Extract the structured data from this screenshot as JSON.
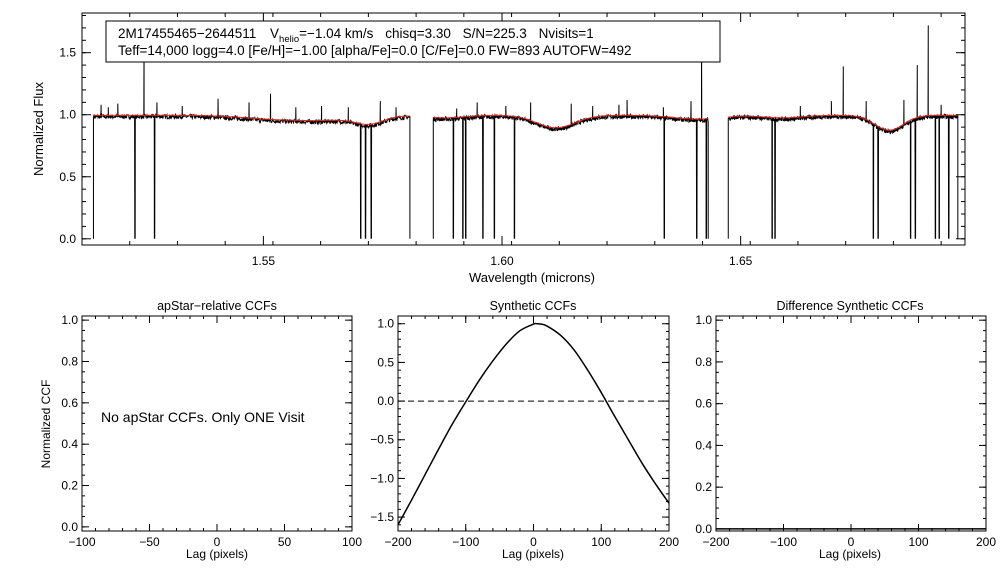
{
  "chart_data": [
    {
      "id": "spectrum",
      "type": "line",
      "title": "",
      "xlabel": "Wavelength (microns)",
      "ylabel": "Normalized Flux",
      "xlim": [
        1.512,
        1.697
      ],
      "ylim": [
        -0.05,
        1.82
      ],
      "xticks": [
        1.55,
        1.6,
        1.65
      ],
      "xtick_labels": [
        "1.55",
        "1.60",
        "1.65"
      ],
      "yticks": [
        0.0,
        0.5,
        1.0,
        1.5
      ],
      "ytick_labels": [
        "0.0",
        "0.5",
        "1.0",
        "1.5"
      ],
      "info_line1": {
        "star": "2M17455465−2644511",
        "vhelio_symbol": "V",
        "vhelio_sub": "helio",
        "vhelio_value": "=−1.04 km/s",
        "chisq": "chisq=3.30",
        "sn": "S/N=225.3",
        "nvisits": "Nvisits=1"
      },
      "info_line2": "Teff=14,000 logg=4.0 [Fe/H]=−1.00 [alpha/Fe]=0.0 [C/Fe]=0.0 FW=893 AUTOFW=492",
      "chips": [
        {
          "start": 1.5144,
          "end": 1.5807
        },
        {
          "start": 1.5856,
          "end": 1.6432
        },
        {
          "start": 1.6474,
          "end": 1.6955
        }
      ],
      "series": [
        {
          "name": "Observed spectrum",
          "color": "#000000",
          "continuum": 0.985,
          "absorption": [
            {
              "center": 1.553,
              "depth": 0.03,
              "width": 0.007
            },
            {
              "center": 1.564,
              "depth": 0.03,
              "width": 0.006
            },
            {
              "center": 1.5723,
              "depth": 0.06,
              "width": 0.003
            },
            {
              "center": 1.588,
              "depth": 0.02,
              "width": 0.004
            },
            {
              "center": 1.6113,
              "depth": 0.1,
              "width": 0.004
            },
            {
              "center": 1.641,
              "depth": 0.03,
              "width": 0.005
            },
            {
              "center": 1.6588,
              "depth": 0.02,
              "width": 0.004
            },
            {
              "center": 1.6811,
              "depth": 0.12,
              "width": 0.003
            }
          ],
          "emission_spikes": [
            {
              "x": 1.516,
              "y": 1.08
            },
            {
              "x": 1.5175,
              "y": 1.06
            },
            {
              "x": 1.5195,
              "y": 1.09
            },
            {
              "x": 1.525,
              "y": 1.6
            },
            {
              "x": 1.5277,
              "y": 1.1
            },
            {
              "x": 1.533,
              "y": 1.07
            },
            {
              "x": 1.5405,
              "y": 1.13
            },
            {
              "x": 1.547,
              "y": 1.1
            },
            {
              "x": 1.5515,
              "y": 1.17
            },
            {
              "x": 1.5568,
              "y": 1.06
            },
            {
              "x": 1.5622,
              "y": 1.07
            },
            {
              "x": 1.5678,
              "y": 1.06
            },
            {
              "x": 1.5745,
              "y": 1.11
            },
            {
              "x": 1.5778,
              "y": 1.06
            },
            {
              "x": 1.5905,
              "y": 1.05
            },
            {
              "x": 1.5948,
              "y": 1.1
            },
            {
              "x": 1.6008,
              "y": 1.07
            },
            {
              "x": 1.606,
              "y": 1.1
            },
            {
              "x": 1.6145,
              "y": 1.09
            },
            {
              "x": 1.619,
              "y": 1.07
            },
            {
              "x": 1.6245,
              "y": 1.08
            },
            {
              "x": 1.6262,
              "y": 1.12
            },
            {
              "x": 1.6338,
              "y": 1.06
            },
            {
              "x": 1.6396,
              "y": 1.11
            },
            {
              "x": 1.6418,
              "y": 1.7
            },
            {
              "x": 1.6625,
              "y": 1.07
            },
            {
              "x": 1.669,
              "y": 1.11
            },
            {
              "x": 1.6715,
              "y": 1.39
            },
            {
              "x": 1.6763,
              "y": 1.11
            },
            {
              "x": 1.6842,
              "y": 1.12
            },
            {
              "x": 1.687,
              "y": 1.4
            },
            {
              "x": 1.6893,
              "y": 1.72
            },
            {
              "x": 1.692,
              "y": 1.08
            }
          ],
          "dropouts": [
            1.5231,
            1.5272,
            1.5704,
            1.5714,
            1.5726,
            1.5898,
            1.5918,
            1.5924,
            1.596,
            1.5984,
            1.6026,
            1.634,
            1.6408,
            1.6428,
            1.6566,
            1.6572,
            1.6778,
            1.6788,
            1.6856,
            1.6866,
            1.6908,
            1.6916,
            1.6936
          ]
        },
        {
          "name": "Synthetic model",
          "color": "#e8211b",
          "continuum": 0.995,
          "absorption": [
            {
              "center": 1.553,
              "depth": 0.03,
              "width": 0.007
            },
            {
              "center": 1.564,
              "depth": 0.03,
              "width": 0.006
            },
            {
              "center": 1.5723,
              "depth": 0.06,
              "width": 0.003
            },
            {
              "center": 1.588,
              "depth": 0.02,
              "width": 0.004
            },
            {
              "center": 1.6113,
              "depth": 0.1,
              "width": 0.004
            },
            {
              "center": 1.641,
              "depth": 0.03,
              "width": 0.005
            },
            {
              "center": 1.6588,
              "depth": 0.02,
              "width": 0.004
            },
            {
              "center": 1.6811,
              "depth": 0.12,
              "width": 0.003
            }
          ]
        }
      ]
    },
    {
      "id": "apstar_ccf",
      "type": "line",
      "title": "apStar−relative CCFs",
      "xlabel": "Lag (pixels)",
      "ylabel": "Normalized CCF",
      "xlim": [
        -100,
        100
      ],
      "ylim": [
        -0.02,
        1.02
      ],
      "xticks": [
        -100,
        -50,
        0,
        50,
        100
      ],
      "xtick_labels": [
        "−100",
        "−50",
        "0",
        "50",
        "100"
      ],
      "yticks": [
        0.0,
        0.2,
        0.4,
        0.6,
        0.8,
        1.0
      ],
      "ytick_labels": [
        "0.0",
        "0.2",
        "0.4",
        "0.6",
        "0.8",
        "1.0"
      ],
      "message": "No apStar CCFs.  Only ONE Visit",
      "series": []
    },
    {
      "id": "synthetic_ccf",
      "type": "line",
      "title": "Synthetic CCFs",
      "xlabel": "Lag (pixels)",
      "xlim": [
        -200,
        200
      ],
      "ylim": [
        -1.68,
        1.1
      ],
      "xticks": [
        -200,
        -100,
        0,
        100,
        200
      ],
      "xtick_labels": [
        "−200",
        "−100",
        "0",
        "100",
        "200"
      ],
      "yticks": [
        -1.5,
        -1.0,
        -0.5,
        0.0,
        0.5,
        1.0
      ],
      "ytick_labels": [
        "−1.5",
        "−1.0",
        "−0.5",
        "0.0",
        "0.5",
        "1.0"
      ],
      "zero_line": {
        "y": 0.0,
        "style": "dashed"
      },
      "series": [
        {
          "name": "CCF",
          "color": "#000000",
          "x": [
            -200,
            -180,
            -160,
            -140,
            -120,
            -100,
            -80,
            -60,
            -40,
            -20,
            0,
            5,
            10,
            20,
            40,
            60,
            80,
            100,
            120,
            140,
            160,
            180,
            200
          ],
          "y": [
            -1.6,
            -1.28,
            -0.95,
            -0.62,
            -0.3,
            -0.01,
            0.27,
            0.52,
            0.74,
            0.91,
            0.995,
            1.0,
            0.997,
            0.97,
            0.85,
            0.66,
            0.4,
            0.11,
            -0.2,
            -0.5,
            -0.8,
            -1.07,
            -1.32
          ]
        }
      ]
    },
    {
      "id": "difference_ccf",
      "type": "line",
      "title": "Difference Synthetic CCFs",
      "xlabel": "Lag (pixels)",
      "xlim": [
        -200,
        200
      ],
      "ylim": [
        -0.01,
        1.02
      ],
      "xticks": [
        -200,
        -100,
        0,
        100,
        200
      ],
      "xtick_labels": [
        "−200",
        "−100",
        "0",
        "100",
        "200"
      ],
      "yticks": [
        0.0,
        0.2,
        0.4,
        0.6,
        0.8,
        1.0
      ],
      "ytick_labels": [
        "0.0",
        "0.2",
        "0.4",
        "0.6",
        "0.8",
        "1.0"
      ],
      "series": [
        {
          "name": "Difference",
          "color": "#000000",
          "x": [
            -200,
            200
          ],
          "y": [
            0.0,
            0.0
          ]
        }
      ]
    }
  ]
}
